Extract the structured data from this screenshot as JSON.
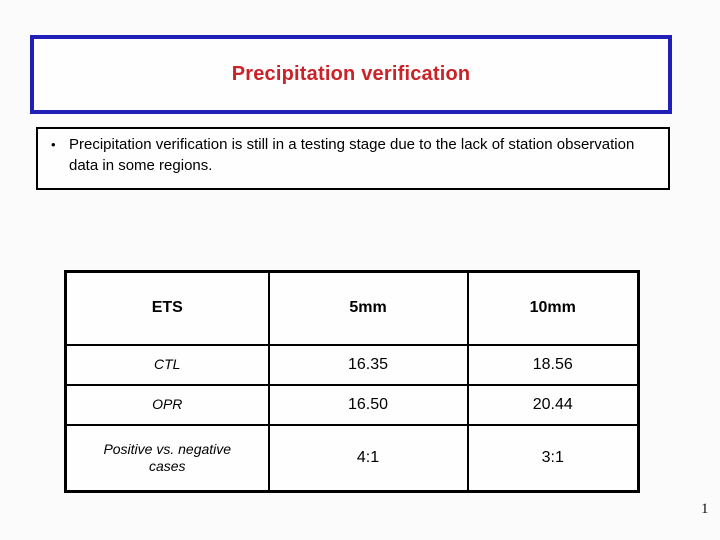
{
  "slide": {
    "page_number": "1"
  },
  "title_box": {
    "title": "Precipitation verification"
  },
  "bullet_box": {
    "bullet": "•",
    "text": "Precipitation verification is still in a testing stage due to the lack of station observation data in some regions."
  },
  "table": {
    "headers": [
      "ETS",
      "5mm",
      "10mm"
    ],
    "rows": [
      {
        "label": "CTL",
        "values": [
          "16.35",
          "18.56"
        ]
      },
      {
        "label": "OPR",
        "values": [
          "16.50",
          "20.44"
        ]
      },
      {
        "label": "Positive vs. negative cases",
        "values": [
          "4:1",
          "3:1"
        ]
      }
    ]
  },
  "colors": {
    "title_text": "#CB2227",
    "title_border": "#2020B8",
    "body_text": "#000000",
    "border": "#000000",
    "background": "#FBFBFB"
  }
}
